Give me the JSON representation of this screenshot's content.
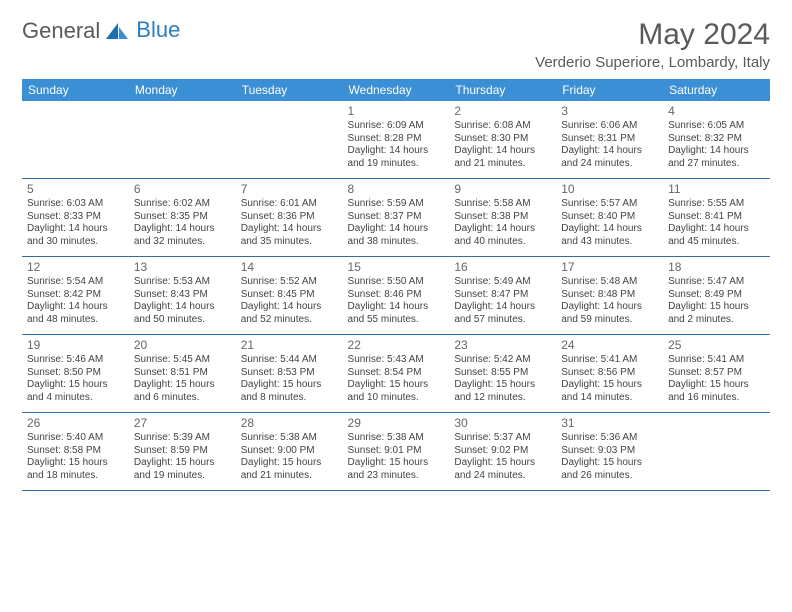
{
  "brand": {
    "part1": "General",
    "part2": "Blue"
  },
  "title": "May 2024",
  "location": "Verderio Superiore, Lombardy, Italy",
  "colors": {
    "headerBg": "#3b8fd4",
    "headerText": "#ffffff",
    "rule": "#2e6fa8",
    "text": "#444",
    "titleText": "#5a5a5a"
  },
  "dow": [
    "Sunday",
    "Monday",
    "Tuesday",
    "Wednesday",
    "Thursday",
    "Friday",
    "Saturday"
  ],
  "weeks": [
    [
      null,
      null,
      null,
      {
        "n": "1",
        "sr": "6:09 AM",
        "ss": "8:28 PM",
        "dl": "14 hours and 19 minutes."
      },
      {
        "n": "2",
        "sr": "6:08 AM",
        "ss": "8:30 PM",
        "dl": "14 hours and 21 minutes."
      },
      {
        "n": "3",
        "sr": "6:06 AM",
        "ss": "8:31 PM",
        "dl": "14 hours and 24 minutes."
      },
      {
        "n": "4",
        "sr": "6:05 AM",
        "ss": "8:32 PM",
        "dl": "14 hours and 27 minutes."
      }
    ],
    [
      {
        "n": "5",
        "sr": "6:03 AM",
        "ss": "8:33 PM",
        "dl": "14 hours and 30 minutes."
      },
      {
        "n": "6",
        "sr": "6:02 AM",
        "ss": "8:35 PM",
        "dl": "14 hours and 32 minutes."
      },
      {
        "n": "7",
        "sr": "6:01 AM",
        "ss": "8:36 PM",
        "dl": "14 hours and 35 minutes."
      },
      {
        "n": "8",
        "sr": "5:59 AM",
        "ss": "8:37 PM",
        "dl": "14 hours and 38 minutes."
      },
      {
        "n": "9",
        "sr": "5:58 AM",
        "ss": "8:38 PM",
        "dl": "14 hours and 40 minutes."
      },
      {
        "n": "10",
        "sr": "5:57 AM",
        "ss": "8:40 PM",
        "dl": "14 hours and 43 minutes."
      },
      {
        "n": "11",
        "sr": "5:55 AM",
        "ss": "8:41 PM",
        "dl": "14 hours and 45 minutes."
      }
    ],
    [
      {
        "n": "12",
        "sr": "5:54 AM",
        "ss": "8:42 PM",
        "dl": "14 hours and 48 minutes."
      },
      {
        "n": "13",
        "sr": "5:53 AM",
        "ss": "8:43 PM",
        "dl": "14 hours and 50 minutes."
      },
      {
        "n": "14",
        "sr": "5:52 AM",
        "ss": "8:45 PM",
        "dl": "14 hours and 52 minutes."
      },
      {
        "n": "15",
        "sr": "5:50 AM",
        "ss": "8:46 PM",
        "dl": "14 hours and 55 minutes."
      },
      {
        "n": "16",
        "sr": "5:49 AM",
        "ss": "8:47 PM",
        "dl": "14 hours and 57 minutes."
      },
      {
        "n": "17",
        "sr": "5:48 AM",
        "ss": "8:48 PM",
        "dl": "14 hours and 59 minutes."
      },
      {
        "n": "18",
        "sr": "5:47 AM",
        "ss": "8:49 PM",
        "dl": "15 hours and 2 minutes."
      }
    ],
    [
      {
        "n": "19",
        "sr": "5:46 AM",
        "ss": "8:50 PM",
        "dl": "15 hours and 4 minutes."
      },
      {
        "n": "20",
        "sr": "5:45 AM",
        "ss": "8:51 PM",
        "dl": "15 hours and 6 minutes."
      },
      {
        "n": "21",
        "sr": "5:44 AM",
        "ss": "8:53 PM",
        "dl": "15 hours and 8 minutes."
      },
      {
        "n": "22",
        "sr": "5:43 AM",
        "ss": "8:54 PM",
        "dl": "15 hours and 10 minutes."
      },
      {
        "n": "23",
        "sr": "5:42 AM",
        "ss": "8:55 PM",
        "dl": "15 hours and 12 minutes."
      },
      {
        "n": "24",
        "sr": "5:41 AM",
        "ss": "8:56 PM",
        "dl": "15 hours and 14 minutes."
      },
      {
        "n": "25",
        "sr": "5:41 AM",
        "ss": "8:57 PM",
        "dl": "15 hours and 16 minutes."
      }
    ],
    [
      {
        "n": "26",
        "sr": "5:40 AM",
        "ss": "8:58 PM",
        "dl": "15 hours and 18 minutes."
      },
      {
        "n": "27",
        "sr": "5:39 AM",
        "ss": "8:59 PM",
        "dl": "15 hours and 19 minutes."
      },
      {
        "n": "28",
        "sr": "5:38 AM",
        "ss": "9:00 PM",
        "dl": "15 hours and 21 minutes."
      },
      {
        "n": "29",
        "sr": "5:38 AM",
        "ss": "9:01 PM",
        "dl": "15 hours and 23 minutes."
      },
      {
        "n": "30",
        "sr": "5:37 AM",
        "ss": "9:02 PM",
        "dl": "15 hours and 24 minutes."
      },
      {
        "n": "31",
        "sr": "5:36 AM",
        "ss": "9:03 PM",
        "dl": "15 hours and 26 minutes."
      },
      null
    ]
  ],
  "labels": {
    "sunrise": "Sunrise: ",
    "sunset": "Sunset: ",
    "daylight": "Daylight: "
  }
}
